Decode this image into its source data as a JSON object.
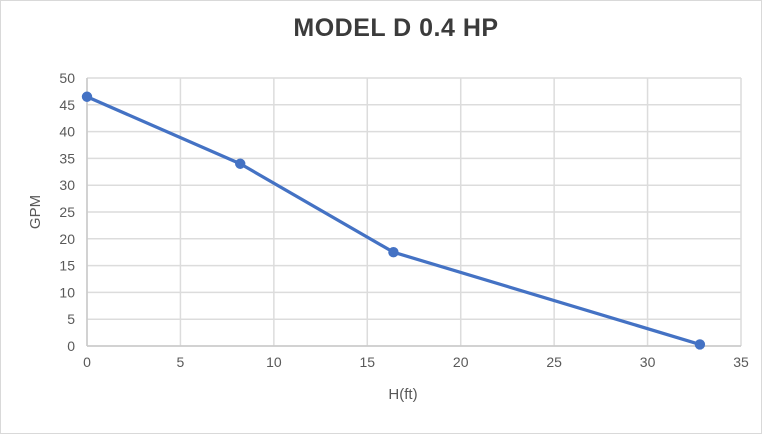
{
  "frame": {
    "background": "#ffffff",
    "border_color": "#d9d9d9"
  },
  "chart_data": {
    "type": "line",
    "title": "MODEL D 0.4 HP",
    "xlabel": "H(ft)",
    "ylabel": "GPM",
    "points": [
      {
        "x": 0,
        "y": 46.5
      },
      {
        "x": 8.2,
        "y": 34
      },
      {
        "x": 16.4,
        "y": 17.5
      },
      {
        "x": 32.8,
        "y": 0.3
      }
    ],
    "xlim": [
      0,
      35
    ],
    "ylim": [
      0,
      50
    ],
    "x_ticks": [
      0,
      5,
      10,
      15,
      20,
      25,
      30,
      35
    ],
    "y_ticks": [
      0,
      5,
      10,
      15,
      20,
      25,
      30,
      35,
      40,
      45,
      50
    ],
    "grid": true,
    "legend": "none",
    "colors": {
      "line": "#4472C4",
      "marker": "#4472C4",
      "gridline": "#dcdcdc",
      "axis_line": "#c9c9c9",
      "tick_text": "#595959",
      "title_text": "#3b3b3b"
    }
  }
}
